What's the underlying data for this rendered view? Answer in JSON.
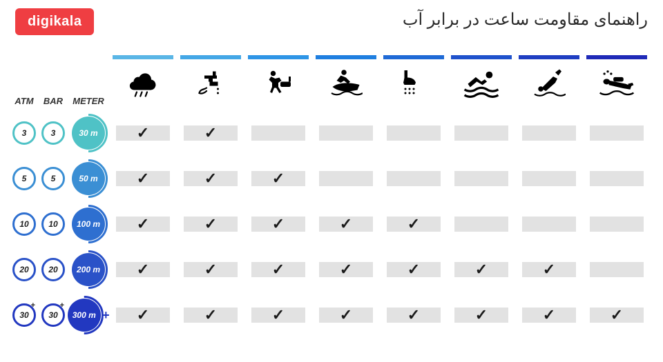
{
  "logo_text": "digikala",
  "logo_bg": "#ef3e42",
  "title": "راهنمای مقاومت ساعت در برابر آب",
  "title_color": "#2a2a2a",
  "title_fontsize": 24,
  "background_color": "#ffffff",
  "cell_bg": "#e2e2e2",
  "headers": {
    "atm": "ATM",
    "bar": "BAR",
    "meter": "METER"
  },
  "activities": [
    {
      "id": "rain",
      "bar_color": "#5ab6e6",
      "icon": "rain"
    },
    {
      "id": "handwash",
      "bar_color": "#44a7e6",
      "icon": "tap"
    },
    {
      "id": "bathing",
      "bar_color": "#2e95e6",
      "icon": "bath"
    },
    {
      "id": "jetski",
      "bar_color": "#1f7fe0",
      "icon": "jetski"
    },
    {
      "id": "shower",
      "bar_color": "#1f6ad6",
      "icon": "shower"
    },
    {
      "id": "swimming",
      "bar_color": "#1f52cc",
      "icon": "swim"
    },
    {
      "id": "snorkel",
      "bar_color": "#1f3ec2",
      "icon": "dive"
    },
    {
      "id": "scuba",
      "bar_color": "#1f2ab8",
      "icon": "scuba"
    }
  ],
  "rows": [
    {
      "atm": "3",
      "bar": "3",
      "meter": "30 m",
      "ring": "#4fc2c6",
      "fill": "#4fc2c6",
      "plus": false,
      "checks": [
        true,
        true,
        false,
        false,
        false,
        false,
        false,
        false
      ]
    },
    {
      "atm": "5",
      "bar": "5",
      "meter": "50 m",
      "ring": "#3b8fd4",
      "fill": "#3b8fd4",
      "plus": false,
      "checks": [
        true,
        true,
        true,
        false,
        false,
        false,
        false,
        false
      ]
    },
    {
      "atm": "10",
      "bar": "10",
      "meter": "100 m",
      "ring": "#2e6fd0",
      "fill": "#2e6fd0",
      "plus": false,
      "checks": [
        true,
        true,
        true,
        true,
        true,
        false,
        false,
        false
      ]
    },
    {
      "atm": "20",
      "bar": "20",
      "meter": "200 m",
      "ring": "#2a52c8",
      "fill": "#2a52c8",
      "plus": false,
      "checks": [
        true,
        true,
        true,
        true,
        true,
        true,
        true,
        false
      ]
    },
    {
      "atm": "30",
      "bar": "30",
      "meter": "300 m",
      "ring": "#2238c0",
      "fill": "#2238c0",
      "plus": true,
      "checks": [
        true,
        true,
        true,
        true,
        true,
        true,
        true,
        true
      ]
    }
  ],
  "check_glyph": "✓"
}
